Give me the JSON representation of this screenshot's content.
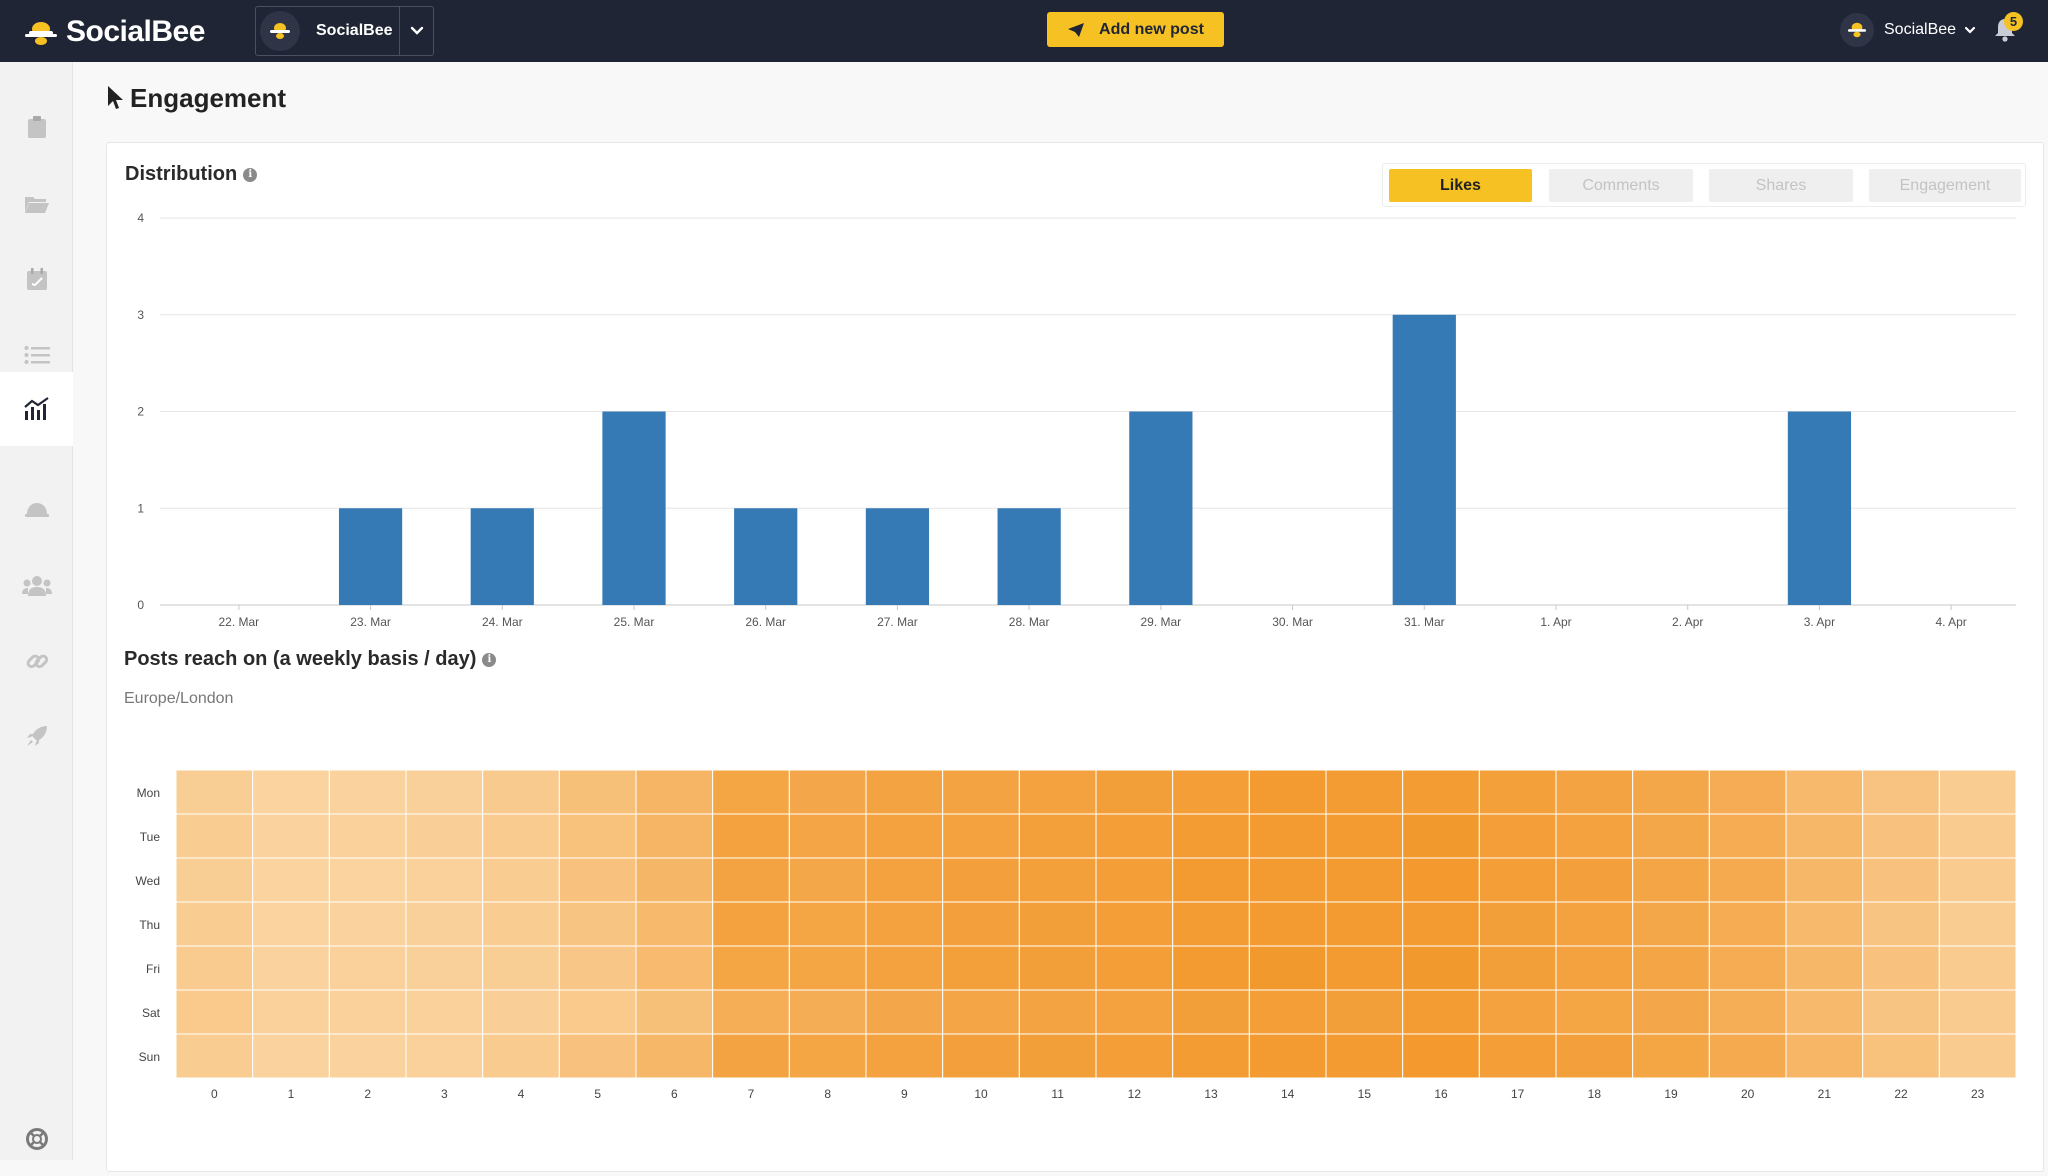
{
  "app": {
    "name": "SocialBee"
  },
  "account_switcher": {
    "name": "SocialBee"
  },
  "header": {
    "add_post_label": "Add new post",
    "user_name": "SocialBee",
    "notification_count": "5"
  },
  "sidebar": {
    "items": [
      {
        "icon": "clipboard-icon"
      },
      {
        "icon": "folder-icon"
      },
      {
        "icon": "calendar-icon"
      },
      {
        "icon": "list-icon"
      },
      {
        "icon": "analytics-icon",
        "active": true
      },
      {
        "icon": "concierge-bell-icon"
      },
      {
        "icon": "team-icon"
      },
      {
        "icon": "link-icon"
      },
      {
        "icon": "rocket-icon"
      }
    ],
    "bottom_icon": "help-lifebuoy-icon"
  },
  "page": {
    "title": "Engagement"
  },
  "distribution": {
    "title": "Distribution",
    "tabs": [
      {
        "label": "Likes",
        "active": true
      },
      {
        "label": "Comments",
        "active": false
      },
      {
        "label": "Shares",
        "active": false
      },
      {
        "label": "Engagement",
        "active": false
      }
    ]
  },
  "reach": {
    "title": "Posts reach on (a weekly basis / day)",
    "timezone": "Europe/London"
  },
  "colors": {
    "bar": "#3579b5",
    "accent": "#f6c122",
    "topbar": "#1f2535",
    "heat_low": "#fbdcb0",
    "heat_high": "#f29526"
  },
  "chart_data": [
    {
      "type": "bar",
      "categories": [
        "22. Mar",
        "23. Mar",
        "24. Mar",
        "25. Mar",
        "26. Mar",
        "27. Mar",
        "28. Mar",
        "29. Mar",
        "30. Mar",
        "31. Mar",
        "1. Apr",
        "2. Apr",
        "3. Apr",
        "4. Apr"
      ],
      "values": [
        0,
        1,
        1,
        2,
        1,
        1,
        1,
        2,
        0,
        3,
        0,
        0,
        2,
        0
      ],
      "title": "Distribution",
      "ylim": [
        0,
        4
      ],
      "yticks": [
        0,
        1,
        2,
        3,
        4
      ],
      "grid": true
    },
    {
      "type": "heatmap",
      "title": "Posts reach on (a weekly basis / day)",
      "y_categories": [
        "Mon",
        "Tue",
        "Wed",
        "Thu",
        "Fri",
        "Sat",
        "Sun"
      ],
      "x_categories": [
        "0",
        "1",
        "2",
        "3",
        "4",
        "5",
        "6",
        "7",
        "8",
        "9",
        "10",
        "11",
        "12",
        "13",
        "14",
        "15",
        "16",
        "17",
        "18",
        "19",
        "20",
        "21",
        "22",
        "23"
      ],
      "values": [
        [
          0.2,
          0.12,
          0.14,
          0.17,
          0.25,
          0.4,
          0.55,
          0.78,
          0.74,
          0.8,
          0.8,
          0.82,
          0.86,
          0.88,
          0.92,
          0.9,
          0.9,
          0.85,
          0.8,
          0.75,
          0.67,
          0.5,
          0.35,
          0.22
        ],
        [
          0.22,
          0.14,
          0.15,
          0.18,
          0.24,
          0.38,
          0.55,
          0.82,
          0.76,
          0.82,
          0.82,
          0.85,
          0.88,
          0.9,
          0.92,
          0.92,
          0.95,
          0.87,
          0.82,
          0.75,
          0.68,
          0.52,
          0.36,
          0.24
        ],
        [
          0.2,
          0.12,
          0.12,
          0.16,
          0.22,
          0.36,
          0.53,
          0.8,
          0.75,
          0.82,
          0.84,
          0.85,
          0.88,
          0.92,
          0.92,
          0.92,
          0.94,
          0.88,
          0.84,
          0.77,
          0.7,
          0.52,
          0.36,
          0.24
        ],
        [
          0.22,
          0.13,
          0.14,
          0.17,
          0.22,
          0.34,
          0.5,
          0.82,
          0.78,
          0.82,
          0.84,
          0.86,
          0.88,
          0.9,
          0.93,
          0.92,
          0.92,
          0.86,
          0.82,
          0.75,
          0.68,
          0.5,
          0.34,
          0.22
        ],
        [
          0.24,
          0.14,
          0.15,
          0.17,
          0.2,
          0.3,
          0.48,
          0.78,
          0.78,
          0.82,
          0.85,
          0.86,
          0.88,
          0.92,
          0.95,
          0.92,
          0.95,
          0.86,
          0.82,
          0.76,
          0.68,
          0.52,
          0.36,
          0.24
        ],
        [
          0.26,
          0.16,
          0.15,
          0.16,
          0.18,
          0.26,
          0.4,
          0.65,
          0.66,
          0.74,
          0.76,
          0.8,
          0.82,
          0.86,
          0.88,
          0.86,
          0.9,
          0.82,
          0.78,
          0.74,
          0.65,
          0.5,
          0.34,
          0.24
        ],
        [
          0.22,
          0.14,
          0.14,
          0.16,
          0.24,
          0.36,
          0.52,
          0.8,
          0.78,
          0.82,
          0.84,
          0.86,
          0.88,
          0.9,
          0.92,
          0.92,
          0.94,
          0.88,
          0.84,
          0.78,
          0.7,
          0.54,
          0.38,
          0.24
        ]
      ]
    }
  ]
}
